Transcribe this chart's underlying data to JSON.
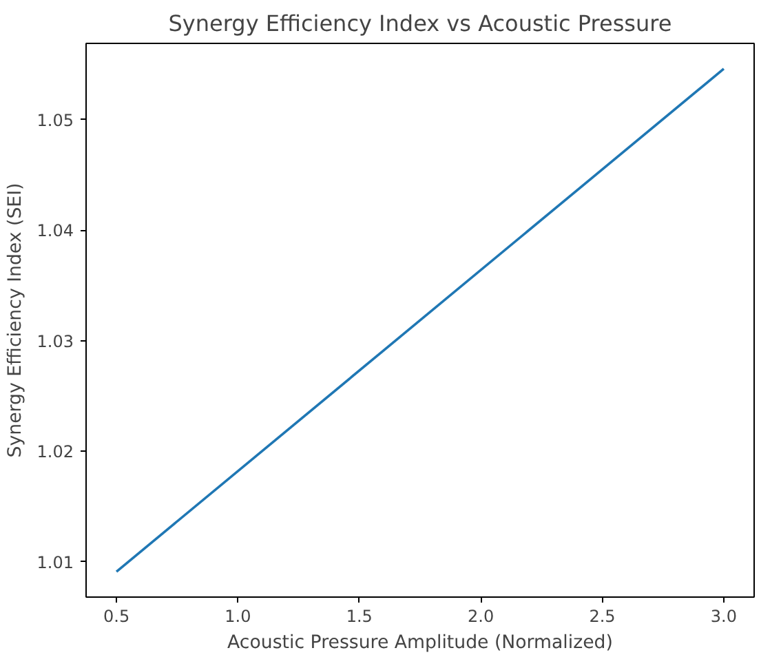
{
  "chart_data": {
    "type": "line",
    "title": "Synergy Efficiency Index vs Acoustic Pressure",
    "xlabel": "Acoustic Pressure Amplitude (Normalized)",
    "ylabel": "Synergy Efficiency Index (SEI)",
    "x": [
      0.5,
      3.0
    ],
    "series": [
      {
        "color": "#1f77b4",
        "values": [
          1.0091,
          1.0546
        ]
      }
    ],
    "xlim": [
      0.375,
      3.125
    ],
    "ylim": [
      1.0068,
      1.0569
    ],
    "xticks": [
      {
        "value": 0.5,
        "label": "0.5"
      },
      {
        "value": 1.0,
        "label": "1.0"
      },
      {
        "value": 1.5,
        "label": "1.5"
      },
      {
        "value": 2.0,
        "label": "2.0"
      },
      {
        "value": 2.5,
        "label": "2.5"
      },
      {
        "value": 3.0,
        "label": "3.0"
      }
    ],
    "yticks": [
      1.01,
      1.02,
      1.03,
      1.04,
      1.05
    ],
    "grid": false
  }
}
